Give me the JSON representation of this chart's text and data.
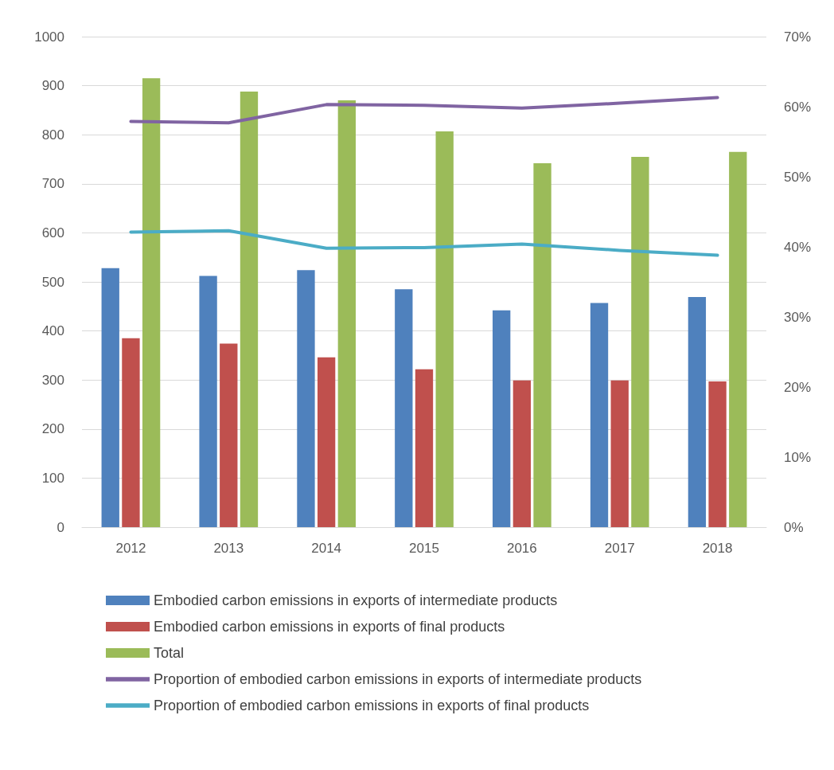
{
  "chart_data": {
    "type": "bar",
    "categories": [
      "2012",
      "2013",
      "2014",
      "2015",
      "2016",
      "2017",
      "2018"
    ],
    "series": [
      {
        "name": "Embodied carbon emissions in exports of intermediate products",
        "color": "#4f81bd",
        "values": [
          528,
          512,
          524,
          485,
          442,
          457,
          469
        ]
      },
      {
        "name": "Embodied carbon emissions in exports of final products",
        "color": "#c0504d",
        "values": [
          385,
          374,
          346,
          322,
          299,
          299,
          297
        ]
      },
      {
        "name": "Total",
        "color": "#9bbb59",
        "values": [
          915,
          888,
          870,
          807,
          742,
          755,
          765
        ]
      },
      {
        "name": "Proportion of embodied carbon emissions in exports of intermediate products",
        "type": "line",
        "axis": "y2",
        "color": "#8064a2",
        "values": [
          57.9,
          57.7,
          60.3,
          60.2,
          59.8,
          60.5,
          61.3
        ]
      },
      {
        "name": "Proportion of embodied carbon emissions in exports of final products",
        "type": "line",
        "axis": "y2",
        "color": "#4bacc6",
        "values": [
          42.1,
          42.3,
          39.8,
          39.9,
          40.4,
          39.5,
          38.8
        ]
      }
    ],
    "ylim": [
      0,
      1000
    ],
    "yticks": [
      0,
      100,
      200,
      300,
      400,
      500,
      600,
      700,
      800,
      900,
      1000
    ],
    "y2lim": [
      0,
      70
    ],
    "y2ticks": [
      {
        "value": 0,
        "label": "0%"
      },
      {
        "value": 10,
        "label": "10%"
      },
      {
        "value": 20,
        "label": "20%"
      },
      {
        "value": 30,
        "label": "30%"
      },
      {
        "value": 40,
        "label": "40%"
      },
      {
        "value": 50,
        "label": "50%"
      },
      {
        "value": 60,
        "label": "60%"
      },
      {
        "value": 70,
        "label": "70%"
      }
    ],
    "grid": "y",
    "legend": "bottom",
    "marker": "none",
    "line_style": "solid"
  }
}
